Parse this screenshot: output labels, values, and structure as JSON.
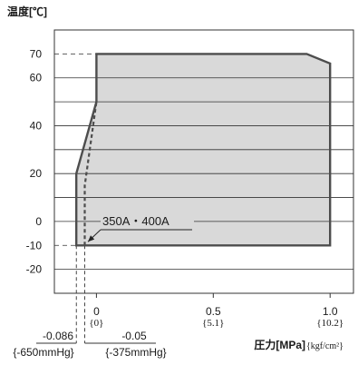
{
  "chart_data": {
    "type": "area",
    "ylabel": "温度[℃]",
    "xlabel": "圧力[MPa]",
    "xlabel_alt_unit": "{kgf/cm²}",
    "xlim": [
      -0.18,
      1.1
    ],
    "ylim": [
      -30,
      80
    ],
    "grid_y": [
      60,
      50,
      40,
      30,
      20,
      10,
      0,
      -20
    ],
    "yticks": [
      {
        "value": 70,
        "label": "70"
      },
      {
        "value": 60,
        "label": "60"
      },
      {
        "value": 40,
        "label": "40"
      },
      {
        "value": 20,
        "label": "20"
      },
      {
        "value": 0,
        "label": "0"
      },
      {
        "value": -10,
        "label": "-10"
      },
      {
        "value": -20,
        "label": "-20"
      }
    ],
    "xticks": [
      {
        "value": 0,
        "label": "0",
        "alt_label": "{0}"
      },
      {
        "value": 0.5,
        "label": "0.5",
        "alt_label": "{5.1}"
      },
      {
        "value": 1.0,
        "label": "1.0",
        "alt_label": "{10.2}"
      }
    ],
    "x_markers": [
      {
        "value": -0.086,
        "from_y": -10,
        "label": "-0.086",
        "alt_label": "{-650mmHg}"
      },
      {
        "value": -0.05,
        "from_y": -10,
        "label": "-0.05",
        "alt_label": "{-375mmHg}"
      }
    ],
    "series": [
      {
        "style": "solid",
        "filled": true,
        "points": [
          [
            -0.086,
            -10
          ],
          [
            -0.086,
            20
          ],
          [
            0,
            50
          ],
          [
            0,
            70
          ],
          [
            0.9,
            70
          ],
          [
            1.0,
            66
          ],
          [
            1.0,
            -10
          ]
        ]
      },
      {
        "name": "350A・400A",
        "style": "dashed",
        "filled": false,
        "points": [
          [
            -0.05,
            -10
          ],
          [
            -0.05,
            15
          ],
          [
            0,
            50
          ]
        ]
      }
    ],
    "reference_lines": [
      {
        "y": 70,
        "to_x": 0
      },
      {
        "y": -10,
        "to_x": -0.086
      }
    ],
    "colors": {
      "fill": "#d9d9d9",
      "outline": "#4d4d4d",
      "grid": "#333333",
      "frame": "#333333"
    }
  }
}
